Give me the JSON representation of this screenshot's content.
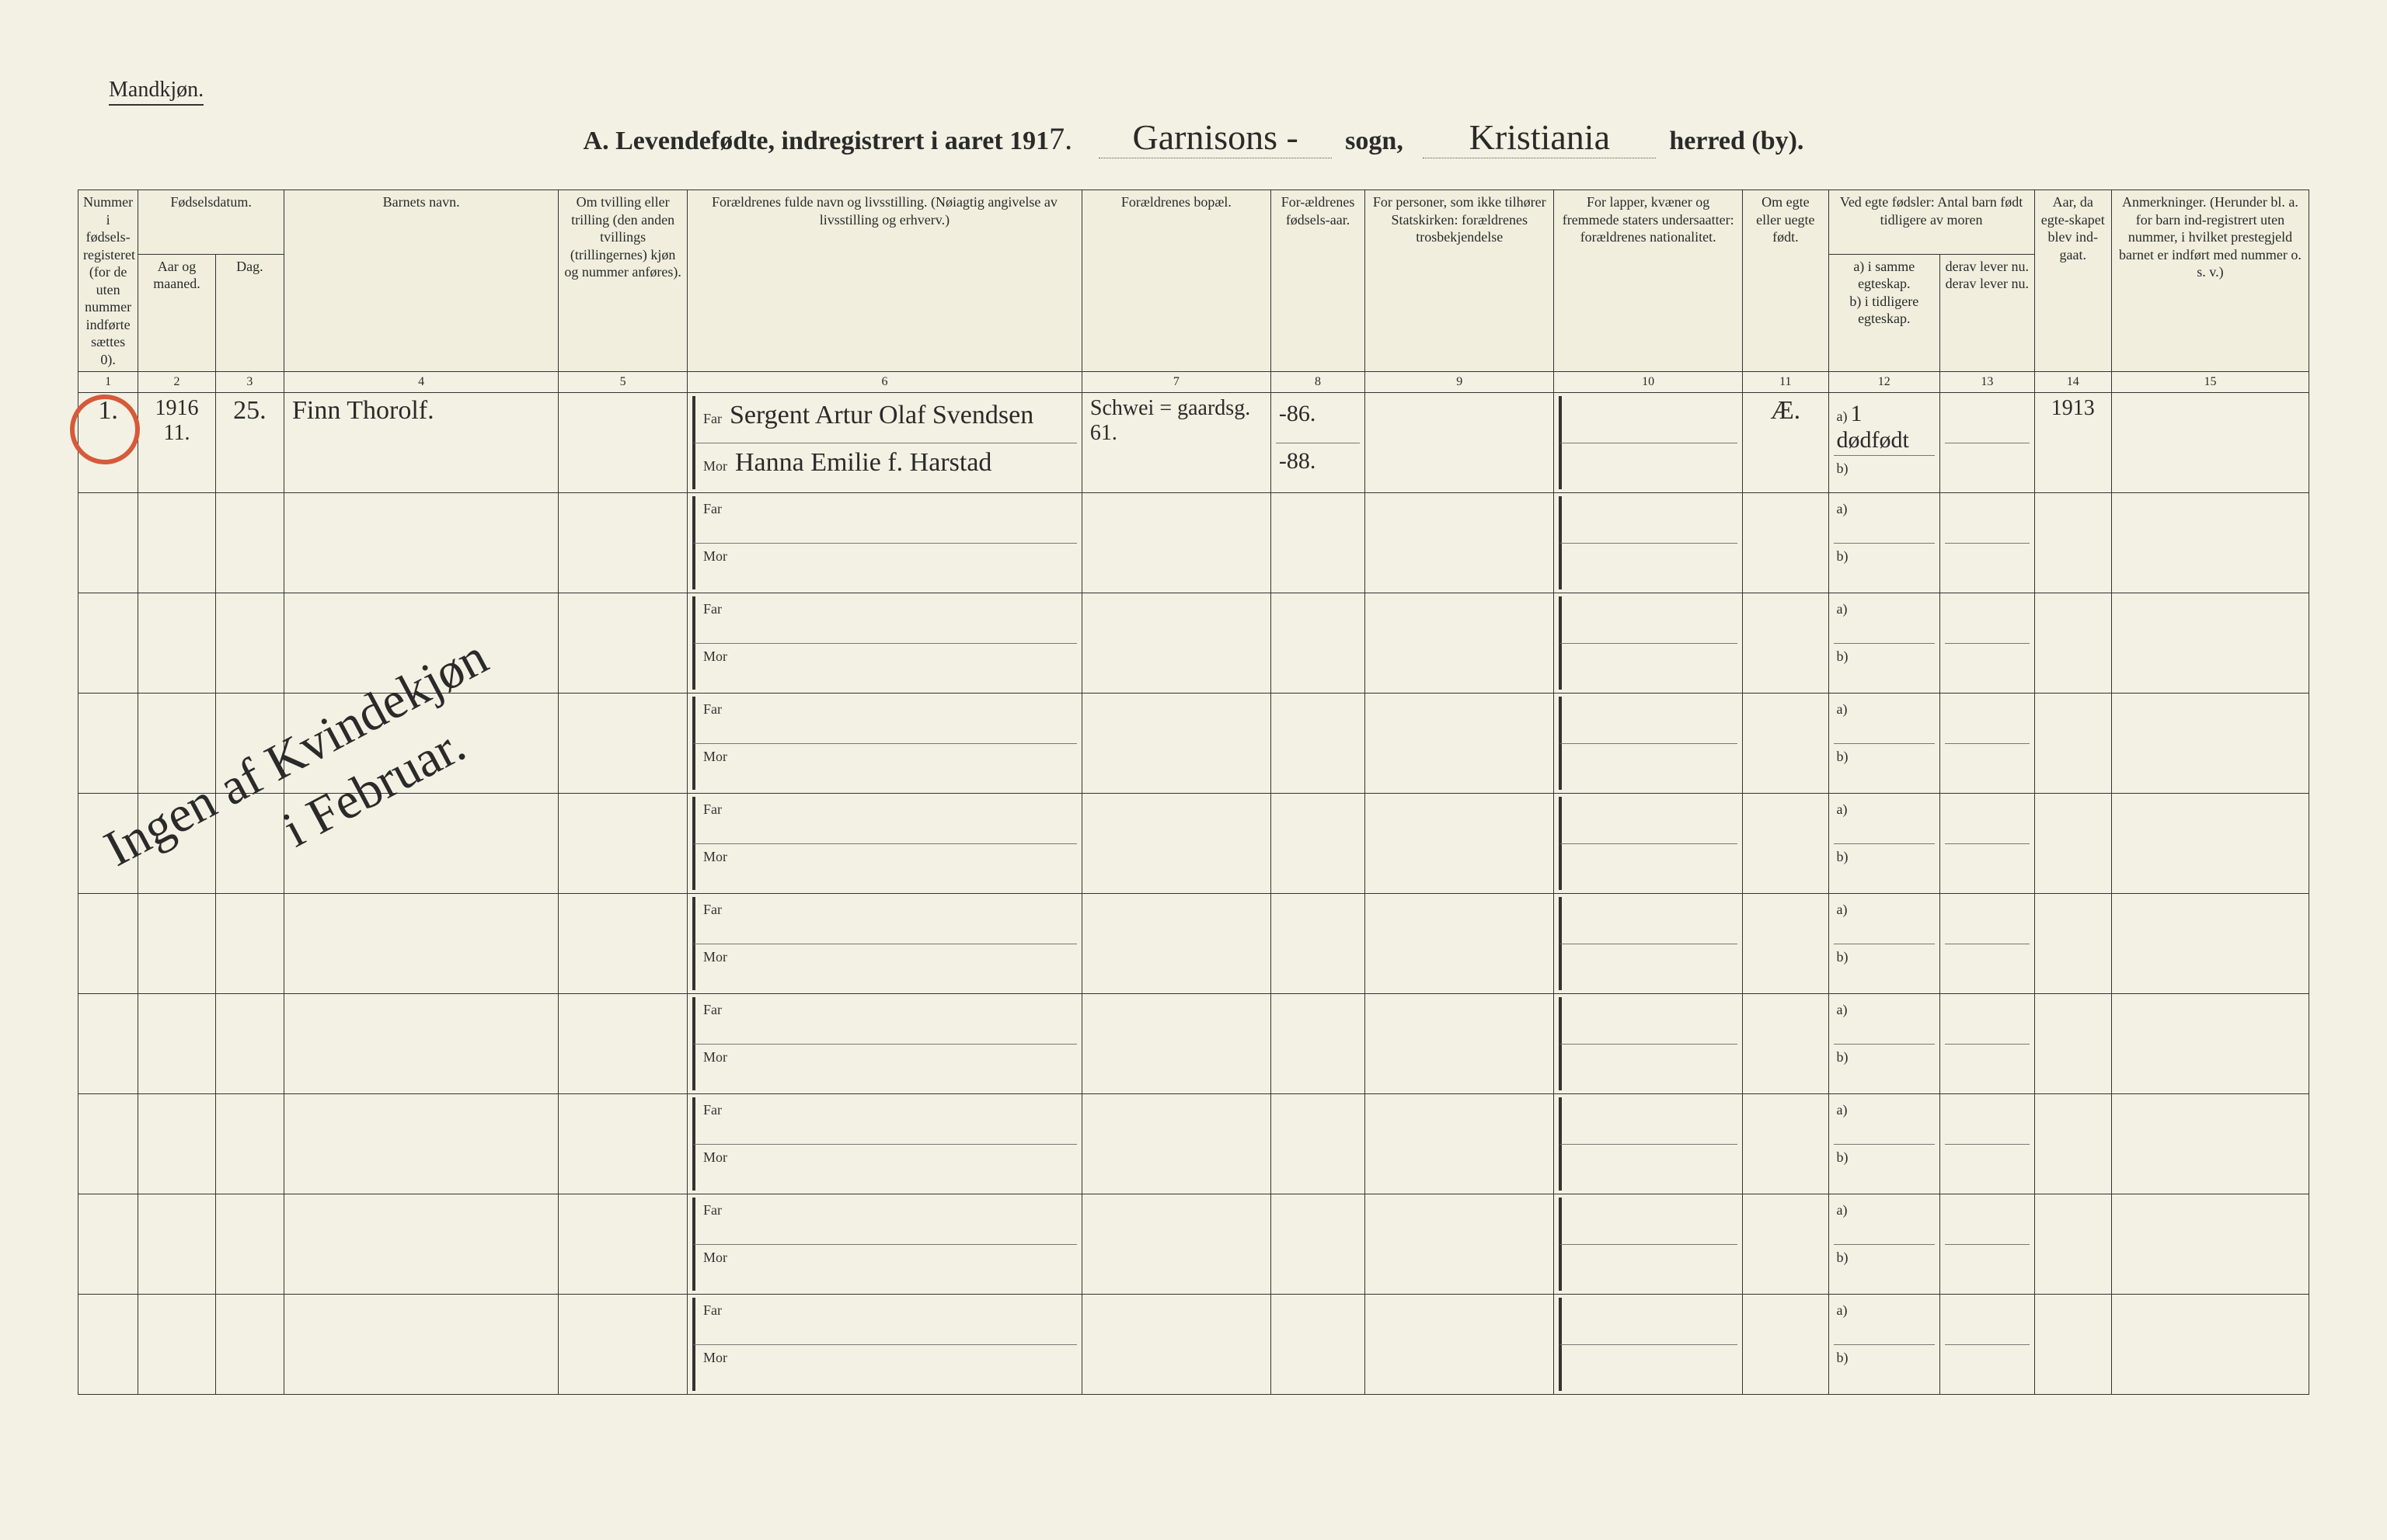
{
  "gender_label": "Mandkjøn.",
  "title": {
    "a_prefix": "A.  Levendefødte, indregistrert i aaret 191",
    "year_digit": "7.",
    "sogn_script": "Garnisons -",
    "sogn_label": "sogn,",
    "herred_script": "Kristiania",
    "herred_label": "herred (by)."
  },
  "headers": {
    "c1": "Nummer i fødsels-registeret (for de uten nummer indførte sættes 0).",
    "c2a": "Fødselsdatum.",
    "c2b_aar": "Aar og maaned.",
    "c2b_dag": "Dag.",
    "c4": "Barnets navn.",
    "c5": "Om tvilling eller trilling (den anden tvillings (trillingernes) kjøn og nummer anføres).",
    "c6": "Forældrenes fulde navn og livsstilling.\n(Nøiagtig angivelse av livsstilling og erhverv.)",
    "c7": "Forældrenes bopæl.",
    "c8": "For-ældrenes fødsels-aar.",
    "c9": "For personer, som ikke tilhører Statskirken: forældrenes trosbekjendelse",
    "c10": "For lapper, kvæner og fremmede staters undersaatter: forældrenes nationalitet.",
    "c11": "Om egte eller uegte født.",
    "c12_top": "Ved egte fødsler: Antal barn født tidligere av moren",
    "c12a": "a) i samme egteskap.",
    "c12b": "b) i tidligere egteskap.",
    "c13a": "derav lever nu.",
    "c13b": "derav lever nu.",
    "c14": "Aar, da egte-skapet blev ind-gaat.",
    "c15": "Anmerkninger.\n(Herunder bl. a. for barn ind-registrert uten nummer, i hvilket prestegjeld barnet er indført med nummer o. s. v.)"
  },
  "colnums": [
    "1",
    "2",
    "3",
    "4",
    "5",
    "6",
    "7",
    "8",
    "9",
    "10",
    "11",
    "12",
    "13",
    "14",
    "15"
  ],
  "row_labels": {
    "far": "Far",
    "mor": "Mor",
    "a": "a)",
    "b": "b)"
  },
  "entry": {
    "nummer": "1.",
    "aar_maaned_line1": "1916",
    "aar_maaned_line2": "11.",
    "dag": "25.",
    "barn": "Finn Thorolf.",
    "far": "Sergent Artur Olaf Svendsen",
    "mor": "Hanna Emilie f. Harstad",
    "bopael": "Schwei = gaardsg. 61.",
    "far_aar": "-86.",
    "mor_aar": "-88.",
    "egte": "Æ.",
    "a_val": "1 dødfødt",
    "aar_indgaat": "1913"
  },
  "diag_note": "Ingen af Kvindekjøn\n             i Februar.",
  "row_count_empty": 9
}
